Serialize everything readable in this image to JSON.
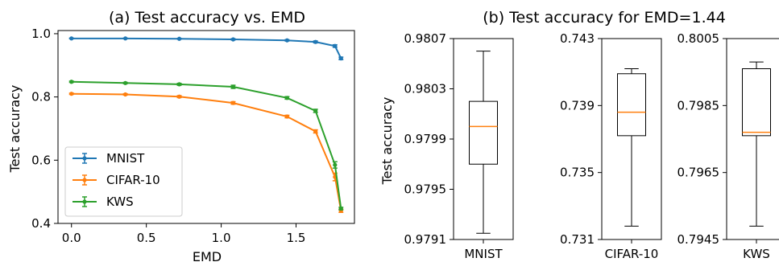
{
  "chart_data": [
    {
      "type": "line",
      "title": "(a) Test accuracy vs. EMD",
      "xlabel": "EMD",
      "ylabel": "Test accuracy",
      "xlim": [
        -0.09,
        1.89
      ],
      "ylim": [
        0.4,
        1.01
      ],
      "xticks": [
        "0.0",
        "0.5",
        "1.0",
        "1.5"
      ],
      "yticks": [
        "0.4",
        "0.6",
        "0.8",
        "1.0"
      ],
      "grid": false,
      "legend": "lower-left",
      "x": [
        0.0,
        0.36,
        0.72,
        1.08,
        1.44,
        1.63,
        1.76,
        1.8
      ],
      "series": [
        {
          "name": "MNIST",
          "color": "#1f77b4",
          "values": [
            0.985,
            0.985,
            0.984,
            0.982,
            0.979,
            0.974,
            0.961,
            0.922
          ],
          "errors": [
            0.001,
            0.001,
            0.001,
            0.002,
            0.002,
            0.003,
            0.004,
            0.004
          ]
        },
        {
          "name": "CIFAR-10",
          "color": "#ff7f0e",
          "values": [
            0.81,
            0.808,
            0.801,
            0.781,
            0.738,
            0.691,
            0.547,
            0.44
          ],
          "errors": [
            0.002,
            0.002,
            0.003,
            0.004,
            0.004,
            0.005,
            0.012,
            0.005
          ]
        },
        {
          "name": "KWS",
          "color": "#2ca02c",
          "values": [
            0.848,
            0.844,
            0.84,
            0.832,
            0.797,
            0.756,
            0.585,
            0.447
          ],
          "errors": [
            0.002,
            0.002,
            0.003,
            0.005,
            0.004,
            0.005,
            0.01,
            0.004
          ]
        }
      ]
    },
    {
      "type": "box",
      "title": "(b) Test accuracy for EMD=1.44",
      "ylabel": "Test accuracy",
      "median_color": "#ff7f0e",
      "panels": [
        {
          "name": "MNIST",
          "ylim": [
            0.9791,
            0.9807
          ],
          "yticks": [
            "0.9791",
            "0.9795",
            "0.9799",
            "0.9803",
            "0.9807"
          ],
          "whisker_low": 0.97915,
          "q1": 0.9797,
          "median": 0.98,
          "q3": 0.9802,
          "whisker_high": 0.9806
        },
        {
          "name": "CIFAR-10",
          "ylim": [
            0.731,
            0.743
          ],
          "yticks": [
            "0.731",
            "0.735",
            "0.739",
            "0.743"
          ],
          "whisker_low": 0.7318,
          "q1": 0.7372,
          "median": 0.7386,
          "q3": 0.7409,
          "whisker_high": 0.7412
        },
        {
          "name": "KWS",
          "ylim": [
            0.7945,
            0.8005
          ],
          "yticks": [
            "0.7945",
            "0.7965",
            "0.7985",
            "0.8005"
          ],
          "whisker_low": 0.7949,
          "q1": 0.7976,
          "median": 0.7977,
          "q3": 0.7996,
          "whisker_high": 0.7998
        }
      ]
    }
  ]
}
